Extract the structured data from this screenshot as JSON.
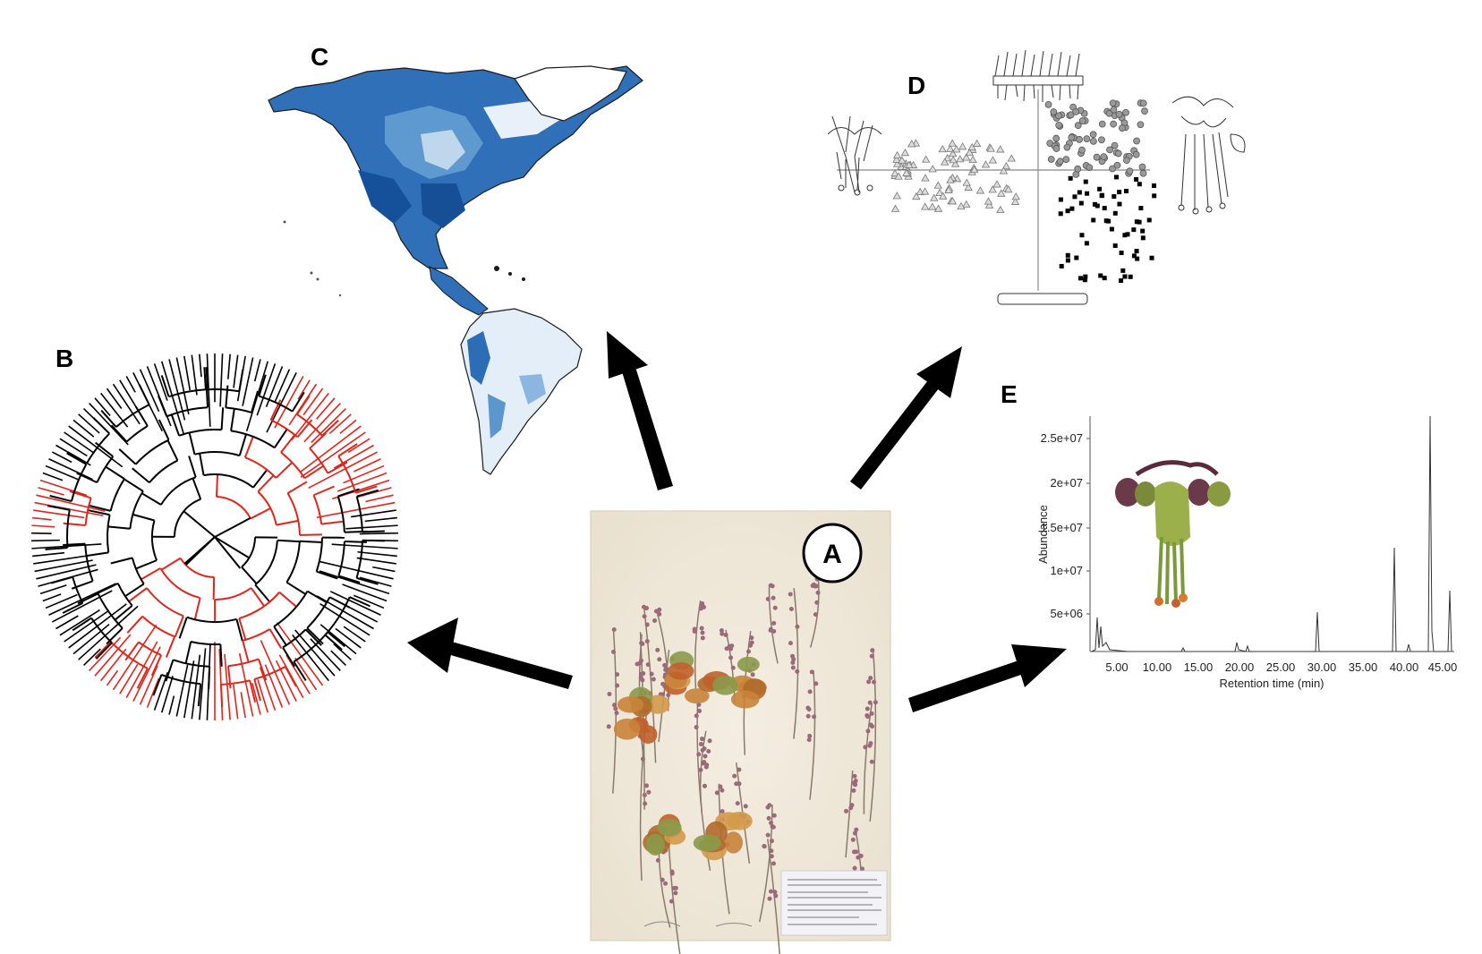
{
  "panels": {
    "a": {
      "letter": "A"
    },
    "b": {
      "letter": "B"
    },
    "c": {
      "letter": "C"
    },
    "d": {
      "letter": "D"
    },
    "e": {
      "letter": "E"
    }
  },
  "chromatogram": {
    "ylabel": "Abundance",
    "xlabel": "Retention time (min)",
    "y_ticks": [
      "2.5e+07",
      "2e+07",
      "1.5e+07",
      "1e+07",
      "5e+06"
    ],
    "x_ticks": [
      "5.00",
      "10.00",
      "15.00",
      "20.00",
      "25.00",
      "30.00",
      "35.00",
      "40.00",
      "45.00"
    ]
  },
  "colors": {
    "tree_highlight": "#e0251b",
    "map_blue": "#1f63b0",
    "arrow": "#000000"
  }
}
